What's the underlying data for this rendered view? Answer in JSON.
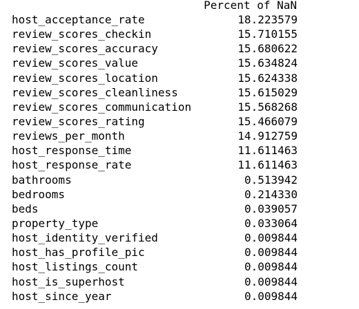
{
  "table": {
    "column_header": "Percent of NaN",
    "rows": [
      {
        "index": "host_acceptance_rate",
        "value": "18.223579"
      },
      {
        "index": "review_scores_checkin",
        "value": "15.710155"
      },
      {
        "index": "review_scores_accuracy",
        "value": "15.680622"
      },
      {
        "index": "review_scores_value",
        "value": "15.634824"
      },
      {
        "index": "review_scores_location",
        "value": "15.624338"
      },
      {
        "index": "review_scores_cleanliness",
        "value": "15.615029"
      },
      {
        "index": "review_scores_communication",
        "value": "15.568268"
      },
      {
        "index": "review_scores_rating",
        "value": "15.466079"
      },
      {
        "index": "reviews_per_month",
        "value": "14.912759"
      },
      {
        "index": "host_response_time",
        "value": "11.611463"
      },
      {
        "index": "host_response_rate",
        "value": "11.611463"
      },
      {
        "index": "bathrooms",
        "value": "0.513942"
      },
      {
        "index": "bedrooms",
        "value": "0.214330"
      },
      {
        "index": "beds",
        "value": "0.039057"
      },
      {
        "index": "property_type",
        "value": "0.033064"
      },
      {
        "index": "host_identity_verified",
        "value": "0.009844"
      },
      {
        "index": "host_has_profile_pic",
        "value": "0.009844"
      },
      {
        "index": "host_listings_count",
        "value": "0.009844"
      },
      {
        "index": "host_is_superhost",
        "value": "0.009844"
      },
      {
        "index": "host_since_year",
        "value": "0.009844"
      }
    ]
  }
}
